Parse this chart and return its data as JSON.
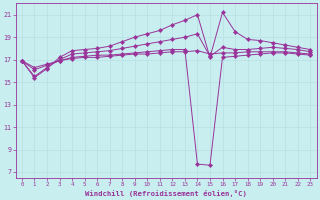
{
  "xlabel": "Windchill (Refroidissement éolien,°C)",
  "background_color": "#c8eef0",
  "line_color": "#993399",
  "grid_color": "#b8e0e4",
  "xlim": [
    -0.5,
    23.5
  ],
  "ylim": [
    6.5,
    22.0
  ],
  "yticks": [
    7,
    9,
    11,
    13,
    15,
    17,
    19,
    21
  ],
  "xticks": [
    0,
    1,
    2,
    3,
    4,
    5,
    6,
    7,
    8,
    9,
    10,
    11,
    12,
    13,
    14,
    15,
    16,
    17,
    18,
    19,
    20,
    21,
    22,
    23
  ],
  "series": [
    {
      "x": [
        0,
        1,
        2,
        3,
        4,
        5,
        6,
        7,
        8,
        9,
        10,
        11,
        12,
        13,
        14,
        15,
        16,
        17,
        18,
        19,
        20,
        21,
        22,
        23
      ],
      "y": [
        16.9,
        15.4,
        16.2,
        17.2,
        17.8,
        17.9,
        18.0,
        18.2,
        18.6,
        19.0,
        19.3,
        19.6,
        20.1,
        20.5,
        21.0,
        17.2,
        21.2,
        19.5,
        18.8,
        18.7,
        18.5,
        18.3,
        18.1,
        17.9
      ]
    },
    {
      "x": [
        0,
        1,
        2,
        3,
        4,
        5,
        6,
        7,
        8,
        9,
        10,
        11,
        12,
        13,
        14,
        15,
        16,
        17,
        18,
        19,
        20,
        21,
        22,
        23
      ],
      "y": [
        16.9,
        15.5,
        16.3,
        17.0,
        17.5,
        17.6,
        17.7,
        17.8,
        18.0,
        18.2,
        18.4,
        18.6,
        18.8,
        19.0,
        19.3,
        17.3,
        18.1,
        17.9,
        17.9,
        18.0,
        18.1,
        18.0,
        17.9,
        17.7
      ]
    },
    {
      "x": [
        0,
        1,
        2,
        3,
        4,
        5,
        6,
        7,
        8,
        9,
        10,
        11,
        12,
        13,
        14,
        15,
        16,
        17,
        18,
        19,
        20,
        21,
        22,
        23
      ],
      "y": [
        16.9,
        16.1,
        16.5,
        16.9,
        17.2,
        17.3,
        17.4,
        17.4,
        17.5,
        17.6,
        17.7,
        17.8,
        17.9,
        17.9,
        7.7,
        7.6,
        17.2,
        17.3,
        17.4,
        17.5,
        17.6,
        17.6,
        17.5,
        17.4
      ]
    },
    {
      "x": [
        0,
        1,
        2,
        3,
        4,
        5,
        6,
        7,
        8,
        9,
        10,
        11,
        12,
        13,
        14,
        15,
        16,
        17,
        18,
        19,
        20,
        21,
        22,
        23
      ],
      "y": [
        16.9,
        16.3,
        16.6,
        16.9,
        17.1,
        17.2,
        17.2,
        17.3,
        17.4,
        17.5,
        17.5,
        17.6,
        17.7,
        17.7,
        17.8,
        17.5,
        17.6,
        17.6,
        17.7,
        17.7,
        17.7,
        17.7,
        17.6,
        17.5
      ]
    }
  ]
}
